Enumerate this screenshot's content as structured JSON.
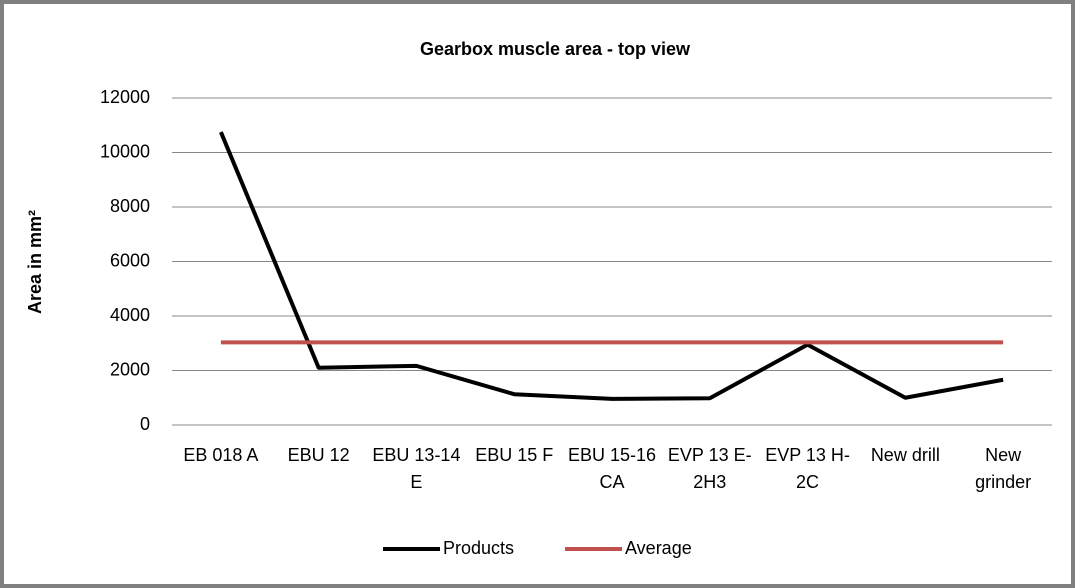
{
  "chart_data": {
    "type": "line",
    "title": "Gearbox muscle area - top view",
    "y_label": "Area in mm²",
    "categories": [
      "EB 018 A",
      "EBU 12",
      "EBU 13-14 E",
      "EBU 15 F",
      "EBU 15-16 CA",
      "EVP 13 E-2H3",
      "EVP 13 H-2C",
      "New drill",
      "New grinder"
    ],
    "series": [
      {
        "name": "Products",
        "color": "#000000",
        "values": [
          10750,
          2100,
          2170,
          1130,
          960,
          980,
          2950,
          1000,
          1660
        ]
      },
      {
        "name": "Average",
        "color": "#c0504d",
        "values": [
          3030,
          3030,
          3030,
          3030,
          3030,
          3030,
          3030,
          3030,
          3030
        ]
      }
    ],
    "ylim": [
      0,
      12000
    ],
    "yticks": [
      0,
      2000,
      4000,
      6000,
      8000,
      10000,
      12000
    ],
    "grid": true,
    "legend": "bottom"
  }
}
